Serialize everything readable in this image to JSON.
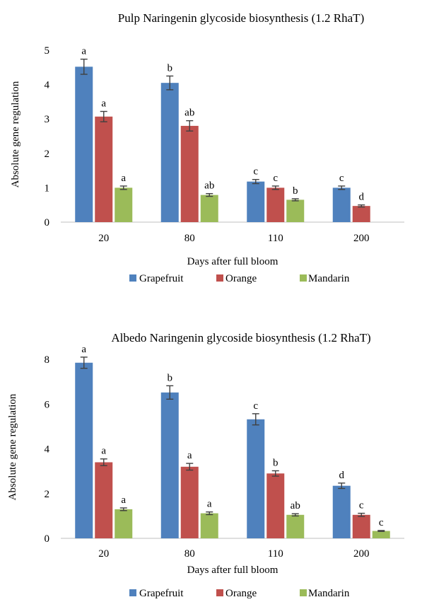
{
  "chart_data": [
    {
      "type": "bar",
      "title": "Pulp Naringenin glycoside biosynthesis (1.2 RhaT)",
      "xlabel": "Days after full bloom",
      "ylabel": "Absolute gene regulation",
      "categories": [
        "20",
        "80",
        "110",
        "200"
      ],
      "ylim": [
        0,
        5
      ],
      "yticks": [
        0,
        1,
        2,
        3,
        4,
        5
      ],
      "grid": false,
      "legend_position": "bottom",
      "series": [
        {
          "name": "Grapefruit",
          "color": "#4f81bd",
          "values": [
            4.52,
            4.05,
            1.18,
            1.0
          ],
          "errors": [
            0.22,
            0.2,
            0.06,
            0.05
          ],
          "labels": [
            "a",
            "b",
            "c",
            "c"
          ]
        },
        {
          "name": "Orange",
          "color": "#c0504d",
          "values": [
            3.07,
            2.8,
            1.0,
            0.47
          ],
          "errors": [
            0.15,
            0.15,
            0.05,
            0.03
          ],
          "labels": [
            "a",
            "ab",
            "c",
            "d"
          ]
        },
        {
          "name": "Mandarin",
          "color": "#9bbb59",
          "values": [
            1.0,
            0.79,
            0.65,
            null
          ],
          "errors": [
            0.05,
            0.04,
            0.03,
            null
          ],
          "labels": [
            "a",
            "ab",
            "b",
            ""
          ]
        }
      ]
    },
    {
      "type": "bar",
      "title": "Albedo Naringenin glycoside biosynthesis (1.2 RhaT)",
      "xlabel": "Days after full bloom",
      "ylabel": "Absolute gene regulation",
      "categories": [
        "20",
        "80",
        "110",
        "200"
      ],
      "ylim": [
        0,
        8
      ],
      "yticks": [
        0,
        2,
        4,
        6,
        8
      ],
      "grid": false,
      "legend_position": "bottom",
      "series": [
        {
          "name": "Grapefruit",
          "color": "#4f81bd",
          "values": [
            7.85,
            6.52,
            5.32,
            2.35
          ],
          "errors": [
            0.25,
            0.3,
            0.25,
            0.12
          ],
          "labels": [
            "a",
            "b",
            "c",
            "d"
          ]
        },
        {
          "name": "Orange",
          "color": "#c0504d",
          "values": [
            3.4,
            3.2,
            2.9,
            1.05
          ],
          "errors": [
            0.15,
            0.15,
            0.12,
            0.07
          ],
          "labels": [
            "a",
            "a",
            "b",
            "c"
          ]
        },
        {
          "name": "Mandarin",
          "color": "#9bbb59",
          "values": [
            1.3,
            1.12,
            1.05,
            0.33
          ],
          "errors": [
            0.06,
            0.06,
            0.05,
            0.02
          ],
          "labels": [
            "a",
            "a",
            "ab",
            "c"
          ]
        }
      ]
    }
  ]
}
